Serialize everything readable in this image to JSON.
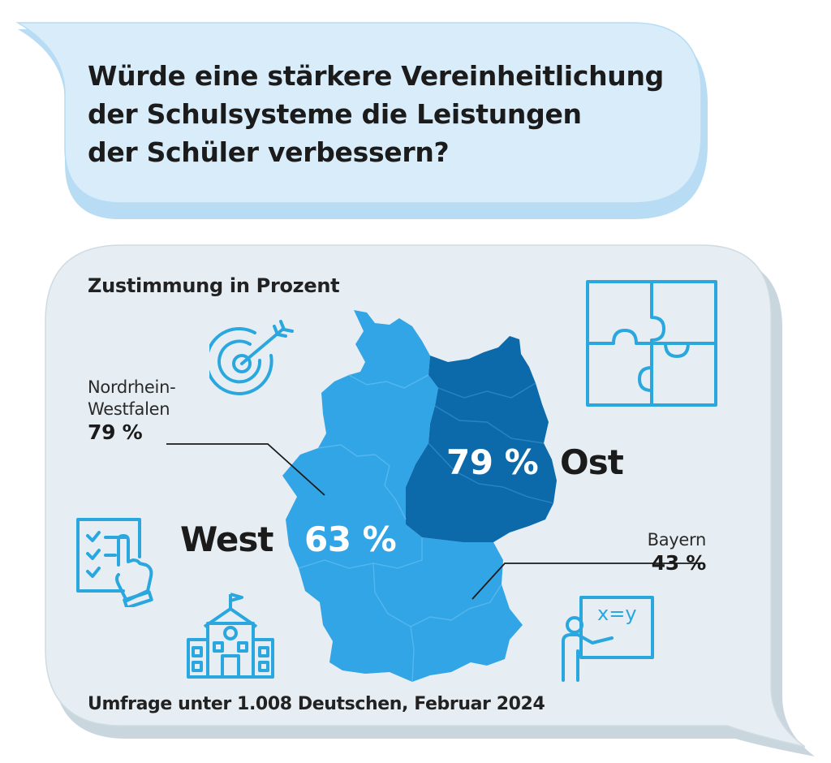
{
  "question": {
    "lines": [
      "Würde eine stärkere Vereinheitlichung",
      "der Schulsysteme die Leistungen",
      "der Schüler verbessern?"
    ]
  },
  "panel": {
    "subtitle": "Zustimmung in Prozent",
    "footer": "Umfrage unter 1.008 Deutschen, Februar 2024"
  },
  "regions": {
    "west": {
      "label": "West",
      "value_text": "63 %",
      "value": 63
    },
    "ost": {
      "label": "Ost",
      "value_text": "79 %",
      "value": 79
    },
    "nrw": {
      "name_lines": [
        "Nordrhein-",
        "Westfalen"
      ],
      "value_text": "79 %",
      "value": 79
    },
    "bayern": {
      "name": "Bayern",
      "value_text": "43 %",
      "value": 43
    }
  },
  "icons": {
    "target": "target-icon",
    "puzzle": "puzzle-icon",
    "checklist": "checklist-icon",
    "school": "school-building-icon",
    "teacher": "teacher-board-icon",
    "board_text": "x=y"
  },
  "colors": {
    "question_bubble": "#d8ecfa",
    "question_bubble_shadow": "#b7dcf4",
    "panel_bubble": "#e7eef3",
    "panel_bubble_shadow": "#cad6de",
    "west": "#32a5e6",
    "ost": "#0c6aab",
    "icon_stroke": "#2aa7df",
    "text": "#1b1b1b"
  }
}
